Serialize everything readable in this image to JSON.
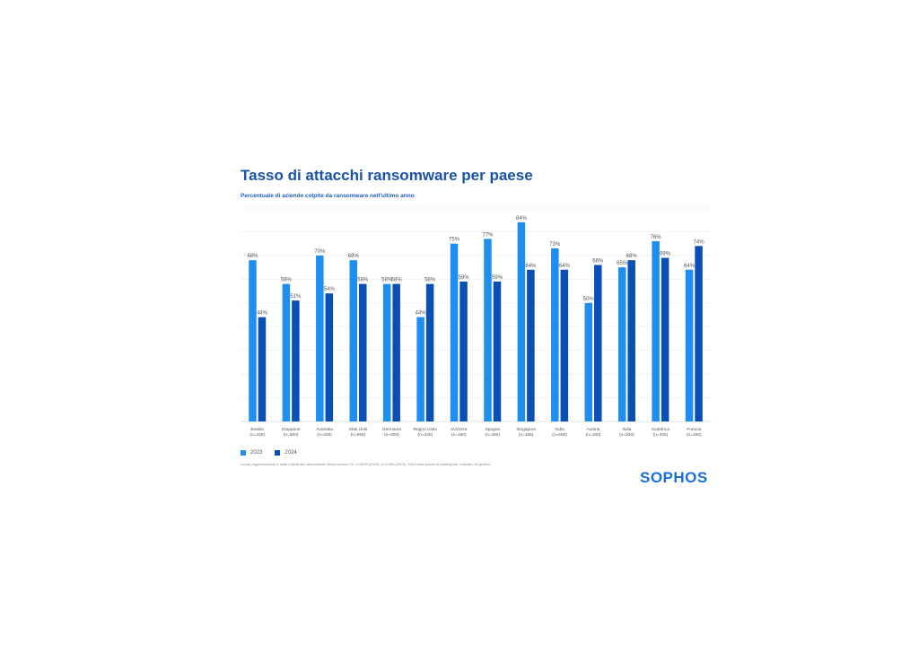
{
  "title": "Tasso di attacchi ransomware per paese",
  "subtitle": "Percentuale di aziende colpite da ransomware nell'ultimo anno",
  "footnote": "La tua organizzazione è stata colpita dal ransomware l'anno scorso? Sì. n=5000 (2024), n=3,000 (2023). 2024 base paese di partecipare; indicate nel grafico.",
  "logo": "SOPHOS",
  "colors": {
    "s2023": "#1f8ef1",
    "s2024": "#0a4fb5",
    "grid": "#eeeeee"
  },
  "chart_data": {
    "type": "bar",
    "categories": [
      {
        "name": "Brasile",
        "n": "(n=330)"
      },
      {
        "name": "Giappone",
        "n": "(n=500)"
      },
      {
        "name": "Australia",
        "n": "(n=330)"
      },
      {
        "name": "Stati Uniti",
        "n": "(n=855)"
      },
      {
        "name": "Germania",
        "n": "(n=600)"
      },
      {
        "name": "Regno Unito",
        "n": "(n=330)"
      },
      {
        "name": "Svizzera",
        "n": "(n=160)"
      },
      {
        "name": "Spagna",
        "n": "(n=250)"
      },
      {
        "name": "Singapore",
        "n": "(n=165)"
      },
      {
        "name": "India",
        "n": "(n=500)"
      },
      {
        "name": "Austria",
        "n": "(n=160)"
      },
      {
        "name": "Italia",
        "n": "(n=330)"
      },
      {
        "name": "Sudafrica",
        "n": "(n=330)"
      },
      {
        "name": "Francia",
        "n": "(n=250)"
      }
    ],
    "series": [
      {
        "name": "2023",
        "values": [
          68,
          58,
          70,
          68,
          58,
          44,
          75,
          77,
          84,
          73,
          50,
          65,
          76,
          64
        ]
      },
      {
        "name": "2024",
        "values": [
          44,
          51,
          54,
          58,
          58,
          58,
          59,
          59,
          64,
          64,
          66,
          68,
          69,
          74
        ]
      }
    ],
    "value_labels": {
      "2023": [
        "68%",
        "58%",
        "70%",
        "68%",
        "58%",
        "44%",
        "75%",
        "77%",
        "84%",
        "73%",
        "50%",
        "65%",
        "76%",
        "64%"
      ],
      "2024": [
        "44%",
        "51%",
        "54%",
        "58%",
        "58%",
        "58%",
        "59%",
        "59%",
        "64%",
        "64%",
        "66%",
        "68%",
        "69%",
        "74%"
      ]
    },
    "ylim": [
      0,
      90
    ],
    "grid": true,
    "legend": "bottom-left"
  }
}
